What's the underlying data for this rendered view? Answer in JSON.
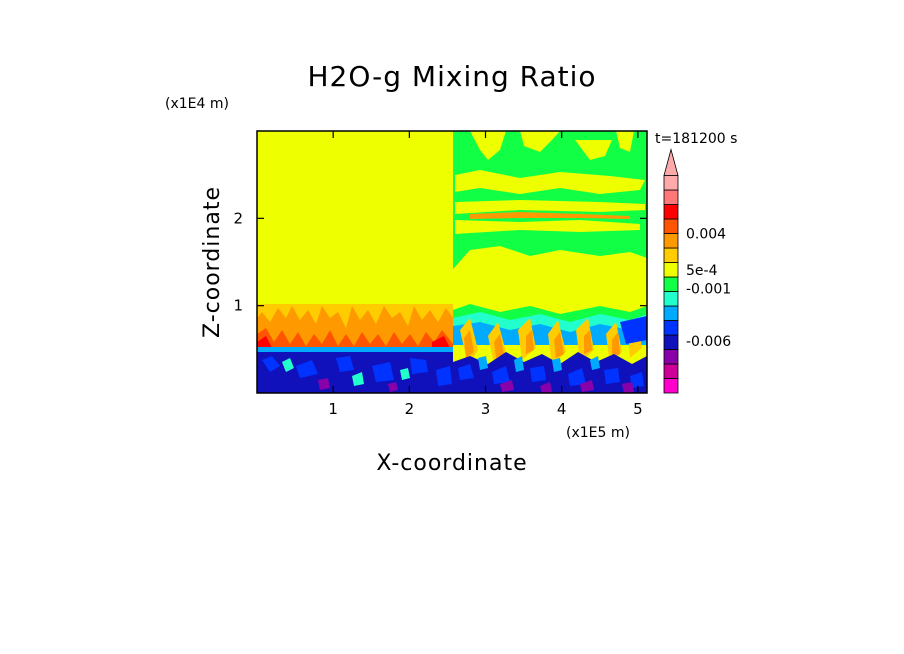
{
  "chart_data": {
    "type": "heatmap",
    "title": "H2O-g Mixing Ratio",
    "xlabel": "X-coordinate",
    "ylabel": "Z-coordinate",
    "x_unit": "(x1E5 m)",
    "y_unit": "(x1E4 m)",
    "time_label": "t=181200 s",
    "xlim": [
      0.0,
      5.12
    ],
    "ylim": [
      0.0,
      3.0
    ],
    "x_ticks": [
      {
        "value": 1,
        "label": "1"
      },
      {
        "value": 2,
        "label": "2"
      },
      {
        "value": 3,
        "label": "3"
      },
      {
        "value": 4,
        "label": "4"
      },
      {
        "value": 5,
        "label": "5"
      }
    ],
    "y_ticks": [
      {
        "value": 1,
        "label": "1"
      },
      {
        "value": 2,
        "label": "2"
      }
    ],
    "left_panel_xmax": 2.57,
    "colorbar": {
      "colors": [
        "#ff00cc",
        "#cc0099",
        "#8800aa",
        "#1111bb",
        "#0033ff",
        "#00aaff",
        "#22ffcc",
        "#11ff44",
        "#eeff00",
        "#ffcc00",
        "#ff9900",
        "#ff5500",
        "#ff0000",
        "#ff7777",
        "#ffaaaa"
      ],
      "labels": [
        "0.004",
        "5e-4",
        "-0.001",
        "-0.006"
      ],
      "extend": "max"
    },
    "regions": [
      {
        "panel": "left",
        "z_range": [
          1.0,
          3.0
        ],
        "value_class": 8
      },
      {
        "panel": "left",
        "z_range": [
          0.5,
          1.0
        ],
        "value_class": 10
      },
      {
        "panel": "left",
        "z_range": [
          0.0,
          0.5
        ],
        "value_class": 3
      },
      {
        "panel": "right",
        "z_range": [
          1.4,
          3.0
        ],
        "value_class": 7
      },
      {
        "panel": "right",
        "z_range": [
          0.6,
          1.4
        ],
        "value_class": 8
      },
      {
        "panel": "right",
        "z_range": [
          0.0,
          0.6
        ],
        "value_class": 3
      }
    ]
  }
}
